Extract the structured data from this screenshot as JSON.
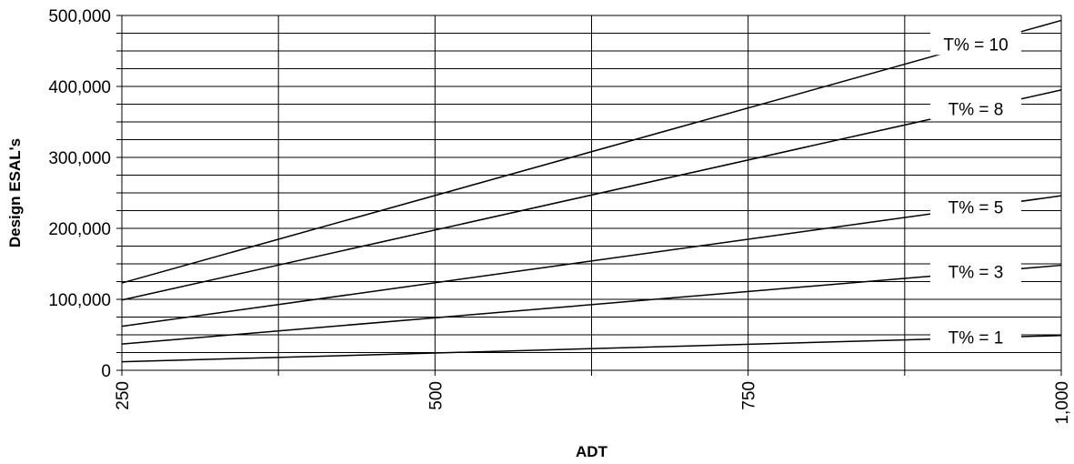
{
  "chart_data": {
    "type": "line",
    "xlabel": "ADT",
    "ylabel": "Design ESAL's",
    "xlim": [
      250,
      1000
    ],
    "ylim": [
      0,
      500000
    ],
    "x_ticks": [
      "250",
      "500",
      "750",
      "1,000"
    ],
    "y_ticks": [
      "0",
      "100,000",
      "200,000",
      "300,000",
      "400,000",
      "500,000"
    ],
    "grid": true,
    "series": [
      {
        "name": "T% = 10",
        "x": [
          250,
          1000
        ],
        "y": [
          123000,
          493000
        ]
      },
      {
        "name": "T% = 8",
        "x": [
          250,
          1000
        ],
        "y": [
          99000,
          395000
        ]
      },
      {
        "name": "T% = 5",
        "x": [
          250,
          1000
        ],
        "y": [
          62000,
          246000
        ]
      },
      {
        "name": "T% = 3",
        "x": [
          250,
          1000
        ],
        "y": [
          37000,
          148000
        ]
      },
      {
        "name": "T% = 1",
        "x": [
          250,
          1000
        ],
        "y": [
          12000,
          49000
        ]
      }
    ]
  }
}
